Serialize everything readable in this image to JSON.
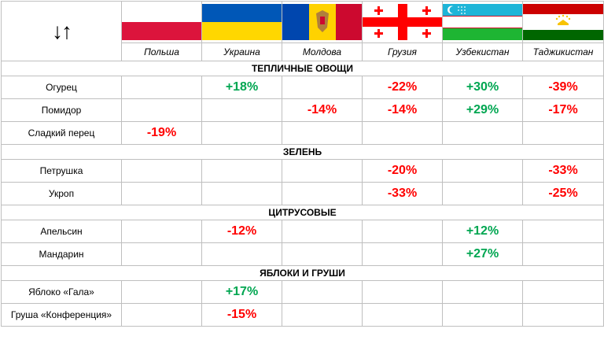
{
  "corner_icon": "sort-arrows-icon",
  "corner_symbol": "↓↑",
  "countries": [
    {
      "name": "Польша",
      "flag": "poland-flag-icon"
    },
    {
      "name": "Украина",
      "flag": "ukraine-flag-icon"
    },
    {
      "name": "Молдова",
      "flag": "moldova-flag-icon"
    },
    {
      "name": "Грузия",
      "flag": "georgia-flag-icon"
    },
    {
      "name": "Узбекистан",
      "flag": "uzbekistan-flag-icon"
    },
    {
      "name": "Таджикистан",
      "flag": "tajikistan-flag-icon"
    }
  ],
  "colors": {
    "negative": "#ff0000",
    "positive": "#00a651",
    "border": "#bfbfbf"
  },
  "sections": [
    {
      "title": "ТЕПЛИЧНЫЕ ОВОЩИ",
      "rows": [
        {
          "product": "Огурец",
          "values": [
            "",
            "+18%",
            "",
            "-22%",
            "+30%",
            "-39%"
          ]
        },
        {
          "product": "Помидор",
          "values": [
            "",
            "",
            "-14%",
            "-14%",
            "+29%",
            "-17%"
          ]
        },
        {
          "product": "Сладкий перец",
          "values": [
            "-19%",
            "",
            "",
            "",
            "",
            ""
          ]
        }
      ]
    },
    {
      "title": "ЗЕЛЕНЬ",
      "rows": [
        {
          "product": "Петрушка",
          "values": [
            "",
            "",
            "",
            "-20%",
            "",
            "-33%"
          ]
        },
        {
          "product": "Укроп",
          "values": [
            "",
            "",
            "",
            "-33%",
            "",
            "-25%"
          ]
        }
      ]
    },
    {
      "title": "ЦИТРУСОВЫЕ",
      "rows": [
        {
          "product": "Апельсин",
          "values": [
            "",
            "-12%",
            "",
            "",
            "+12%",
            ""
          ]
        },
        {
          "product": "Мандарин",
          "values": [
            "",
            "",
            "",
            "",
            "+27%",
            ""
          ]
        }
      ]
    },
    {
      "title": "ЯБЛОКИ И ГРУШИ",
      "rows": [
        {
          "product": "Яблоко «Гала»",
          "values": [
            "",
            "+17%",
            "",
            "",
            "",
            ""
          ]
        },
        {
          "product": "Груша «Конференция»",
          "values": [
            "",
            "-15%",
            "",
            "",
            "",
            ""
          ]
        }
      ]
    }
  ]
}
